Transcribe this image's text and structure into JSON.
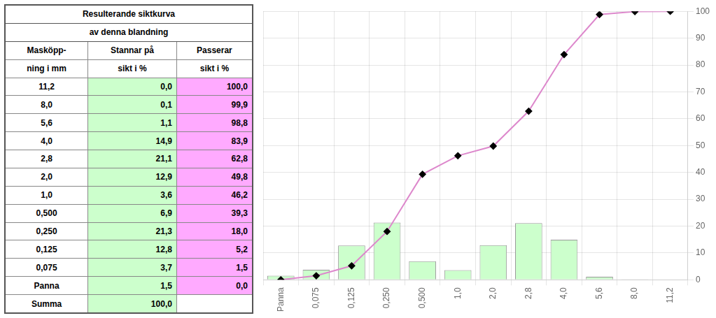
{
  "chart_data": {
    "type": "bar",
    "categories": [
      "Panna",
      "0,075",
      "0,125",
      "0,250",
      "0,500",
      "1,0",
      "2,0",
      "2,8",
      "4,0",
      "5,6",
      "8,0",
      "11,2"
    ],
    "series": [
      {
        "type": "bar",
        "color": "#ccffcc",
        "values": [
          1.5,
          3.7,
          12.8,
          21.3,
          6.9,
          3.6,
          12.9,
          21.1,
          14.9,
          1.1,
          0.1,
          0.0
        ]
      },
      {
        "type": "line",
        "color": "#dd88cc",
        "marker": "diamond",
        "values": [
          0.0,
          1.5,
          5.2,
          18.0,
          39.3,
          46.2,
          49.8,
          62.8,
          83.9,
          98.8,
          99.9,
          100.0
        ]
      }
    ],
    "ylim": [
      0,
      100
    ],
    "yticks": [
      0,
      10,
      20,
      30,
      40,
      50,
      60,
      70,
      80,
      90,
      100
    ],
    "grid": true
  },
  "table": {
    "title": [
      "Resulterande siktkurva",
      "av denna blandning"
    ],
    "columns": [
      [
        "Masköpp-",
        "ning i mm"
      ],
      [
        "Stannar på",
        "sikt i %"
      ],
      [
        "Passerar",
        "sikt i %"
      ]
    ],
    "colors": [
      null,
      "#ccffcc",
      "#ffaaff"
    ],
    "rows": [
      [
        "11,2",
        "0,0",
        "100,0"
      ],
      [
        "8,0",
        "0,1",
        "99,9"
      ],
      [
        "5,6",
        "1,1",
        "98,8"
      ],
      [
        "4,0",
        "14,9",
        "83,9"
      ],
      [
        "2,8",
        "21,1",
        "62,8"
      ],
      [
        "2,0",
        "12,9",
        "49,8"
      ],
      [
        "1,0",
        "3,6",
        "46,2"
      ],
      [
        "0,500",
        "6,9",
        "39,3"
      ],
      [
        "0,250",
        "21,3",
        "18,0"
      ],
      [
        "0,125",
        "12,8",
        "5,2"
      ],
      [
        "0,075",
        "3,7",
        "1,5"
      ],
      [
        "Panna",
        "1,5",
        "0,0"
      ],
      [
        "Summa",
        "100,0",
        null
      ]
    ]
  }
}
